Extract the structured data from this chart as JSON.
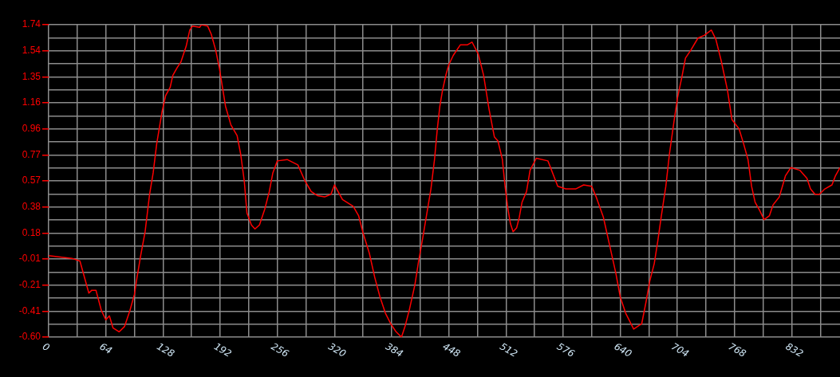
{
  "chart_data": {
    "type": "line",
    "color": "#ff0000",
    "marker": "none",
    "grid": true,
    "legend": false,
    "x": [
      0,
      26,
      35,
      45,
      48,
      53,
      59,
      64,
      68,
      72,
      79,
      85,
      91,
      96,
      99,
      103,
      108,
      113,
      117,
      121,
      127,
      131,
      136,
      139,
      144,
      148,
      154,
      158,
      161,
      169,
      171,
      178,
      182,
      187,
      191,
      198,
      204,
      211,
      215,
      219,
      222,
      227,
      231,
      236,
      242,
      247,
      251,
      256,
      267,
      279,
      287,
      294,
      301,
      309,
      316,
      320,
      329,
      341,
      347,
      352,
      359,
      365,
      371,
      377,
      383,
      389,
      395,
      399,
      404,
      410,
      414,
      419,
      423,
      428,
      432,
      435,
      438,
      441,
      445,
      448,
      453,
      461,
      469,
      474,
      481,
      487,
      493,
      499,
      503,
      508,
      511,
      514,
      517,
      520,
      524,
      527,
      530,
      535,
      539,
      546,
      559,
      570,
      579,
      590,
      599,
      608,
      613,
      621,
      628,
      635,
      640,
      646,
      655,
      664,
      669,
      673,
      678,
      682,
      686,
      691,
      695,
      700,
      704,
      709,
      713,
      719,
      727,
      734,
      742,
      747,
      753,
      760,
      765,
      773,
      778,
      783,
      787,
      791,
      796,
      801,
      807,
      811,
      818,
      822,
      825,
      831,
      841,
      849,
      853,
      858,
      863,
      869,
      877,
      881,
      886
    ],
    "values": [
      0.01,
      -0.01,
      -0.03,
      -0.27,
      -0.25,
      -0.25,
      -0.4,
      -0.47,
      -0.44,
      -0.53,
      -0.56,
      -0.52,
      -0.4,
      -0.28,
      -0.15,
      0.01,
      0.19,
      0.47,
      0.63,
      0.85,
      1.09,
      1.21,
      1.27,
      1.36,
      1.42,
      1.46,
      1.58,
      1.7,
      1.73,
      1.72,
      1.74,
      1.73,
      1.67,
      1.55,
      1.42,
      1.13,
      0.99,
      0.91,
      0.77,
      0.57,
      0.33,
      0.24,
      0.21,
      0.24,
      0.36,
      0.49,
      0.63,
      0.72,
      0.73,
      0.69,
      0.57,
      0.49,
      0.46,
      0.45,
      0.47,
      0.54,
      0.43,
      0.38,
      0.31,
      0.18,
      0.03,
      -0.15,
      -0.3,
      -0.42,
      -0.5,
      -0.56,
      -0.6,
      -0.52,
      -0.39,
      -0.21,
      -0.04,
      0.15,
      0.31,
      0.51,
      0.73,
      0.95,
      1.13,
      1.25,
      1.37,
      1.44,
      1.51,
      1.59,
      1.59,
      1.61,
      1.52,
      1.36,
      1.11,
      0.9,
      0.87,
      0.73,
      0.53,
      0.37,
      0.25,
      0.19,
      0.22,
      0.3,
      0.41,
      0.49,
      0.65,
      0.74,
      0.72,
      0.53,
      0.51,
      0.51,
      0.54,
      0.53,
      0.45,
      0.3,
      0.09,
      -0.12,
      -0.3,
      -0.42,
      -0.54,
      -0.5,
      -0.33,
      -0.18,
      -0.05,
      0.12,
      0.31,
      0.53,
      0.77,
      1.01,
      1.19,
      1.35,
      1.49,
      1.55,
      1.64,
      1.66,
      1.7,
      1.63,
      1.47,
      1.25,
      1.03,
      0.96,
      0.85,
      0.73,
      0.53,
      0.41,
      0.35,
      0.28,
      0.31,
      0.39,
      0.45,
      0.54,
      0.61,
      0.67,
      0.65,
      0.59,
      0.51,
      0.47,
      0.47,
      0.51,
      0.54,
      0.61,
      0.67
    ],
    "xlim": [
      0,
      886
    ],
    "xticks": [
      0,
      {
        "value": 32,
        "label": null
      },
      64,
      {
        "value": 96,
        "label": null
      },
      128,
      {
        "value": 160,
        "label": null
      },
      192,
      {
        "value": 224,
        "label": null
      },
      256,
      {
        "value": 288,
        "label": null
      },
      320,
      {
        "value": 352,
        "label": null
      },
      384,
      {
        "value": 416,
        "label": null
      },
      448,
      {
        "value": 480,
        "label": null
      },
      512,
      {
        "value": 544,
        "label": null
      },
      576,
      {
        "value": 608,
        "label": null
      },
      640,
      {
        "value": 672,
        "label": null
      },
      704,
      {
        "value": 736,
        "label": null
      },
      768,
      {
        "value": 800,
        "label": null
      },
      832,
      {
        "value": 864,
        "label": null
      }
    ],
    "ylim": [
      -0.6,
      1.74
    ],
    "yticks": [
      {
        "value": -0.6,
        "label": "-0.60"
      },
      {
        "value": -0.5025,
        "label": null
      },
      {
        "value": -0.405,
        "label": "-0.41"
      },
      {
        "value": -0.3075,
        "label": null
      },
      {
        "value": -0.21,
        "label": "-0.21"
      },
      {
        "value": -0.1125,
        "label": null
      },
      {
        "value": -0.015,
        "label": "-0.01"
      },
      {
        "value": 0.0825,
        "label": null
      },
      {
        "value": 0.18,
        "label": "0.18"
      },
      {
        "value": 0.2775,
        "label": null
      },
      {
        "value": 0.375,
        "label": "0.38"
      },
      {
        "value": 0.4725,
        "label": null
      },
      {
        "value": 0.57,
        "label": "0.57"
      },
      {
        "value": 0.6675,
        "label": null
      },
      {
        "value": 0.765,
        "label": "0.77"
      },
      {
        "value": 0.8625,
        "label": null
      },
      {
        "value": 0.96,
        "label": "0.96"
      },
      {
        "value": 1.0575,
        "label": null
      },
      {
        "value": 1.155,
        "label": "1.16"
      },
      {
        "value": 1.2525,
        "label": null
      },
      {
        "value": 1.35,
        "label": "1.35"
      },
      {
        "value": 1.4475,
        "label": null
      },
      {
        "value": 1.545,
        "label": "1.54"
      },
      {
        "value": 1.6425,
        "label": null
      },
      {
        "value": 1.74,
        "label": "1.74"
      }
    ]
  }
}
